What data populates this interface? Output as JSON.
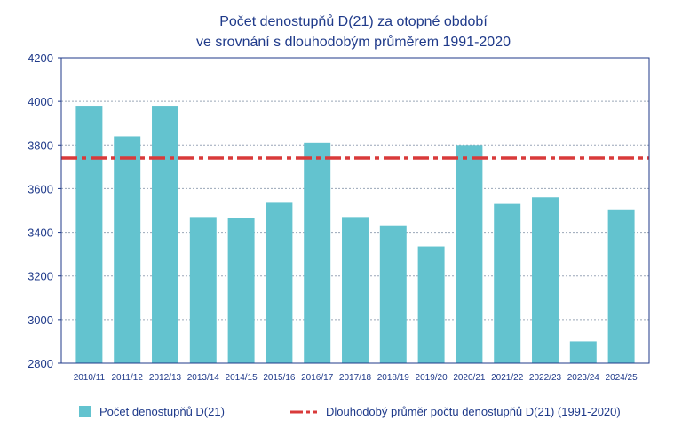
{
  "chart_data": {
    "type": "bar",
    "title_lines": [
      "Počet denostupňů D(21) za otopné období",
      "ve srovnání s dlouhodobým průměrem 1991-2020"
    ],
    "categories": [
      "2010/11",
      "2011/12",
      "2012/13",
      "2013/14",
      "2014/15",
      "2015/16",
      "2016/17",
      "2017/18",
      "2018/19",
      "2019/20",
      "2020/21",
      "2021/22",
      "2022/23",
      "2023/24",
      "2024/25"
    ],
    "series": [
      {
        "name": "Počet denostupňů D(21)",
        "type": "bar",
        "color": "#63c3cf",
        "values": [
          3980,
          3840,
          3980,
          3470,
          3465,
          3535,
          3810,
          3470,
          3432,
          3335,
          3800,
          3530,
          3560,
          2900,
          3505
        ]
      },
      {
        "name": "Dlouhodobý průměr počtu denostupňů D(21) (1991-2020)",
        "type": "line",
        "color": "#d93a3a",
        "value": 3740
      }
    ],
    "ylim": [
      2800,
      4200
    ],
    "yticks": [
      2800,
      3000,
      3200,
      3400,
      3600,
      3800,
      4000,
      4200
    ],
    "xlabel": "",
    "ylabel": "",
    "grid": true,
    "legend": "bottom"
  }
}
